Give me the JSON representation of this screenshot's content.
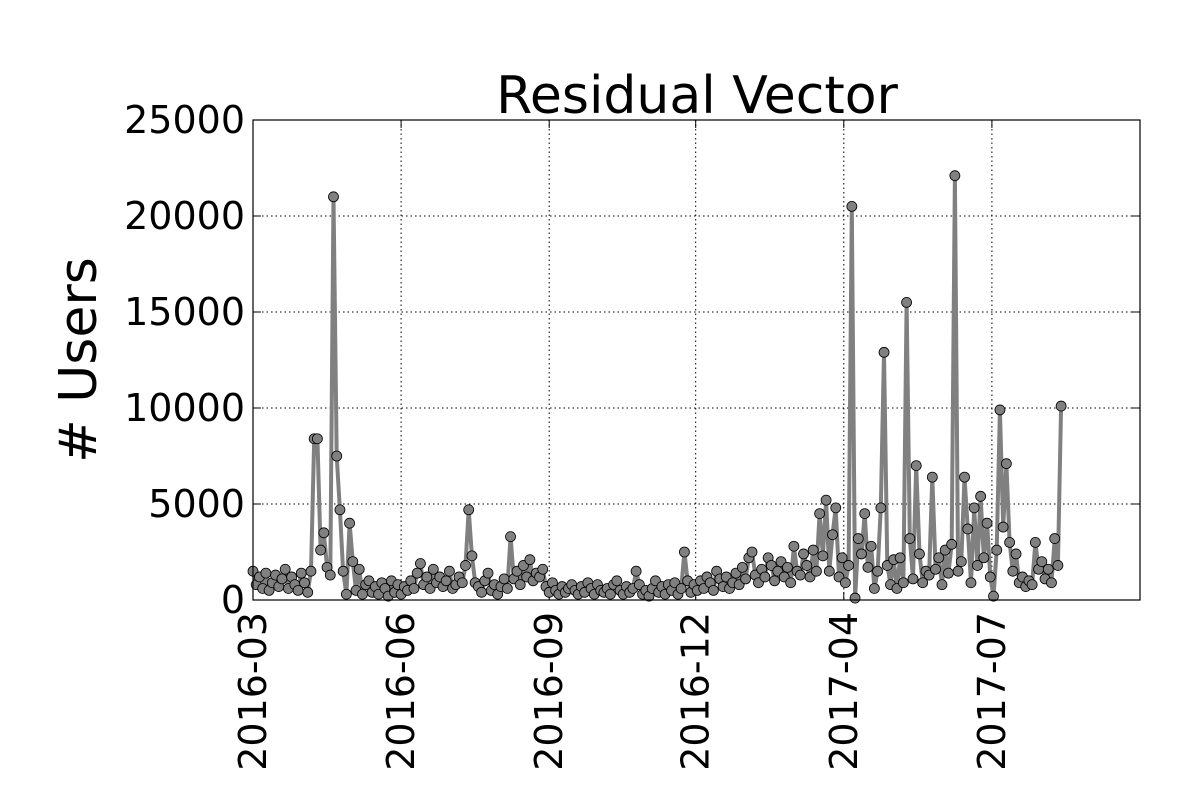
{
  "chart_data": {
    "type": "line",
    "title": "Residual Vector",
    "y_label": "# Users",
    "x": [
      0,
      2,
      4,
      6,
      8,
      10,
      12,
      14,
      16,
      18,
      20,
      22,
      24,
      26,
      28,
      30,
      32,
      34,
      36,
      38,
      40,
      42,
      44,
      46,
      48,
      50,
      52,
      54,
      56,
      58,
      60,
      62,
      64,
      66,
      68,
      70,
      72,
      74,
      76,
      78,
      80,
      82,
      84,
      86,
      88,
      90,
      92,
      94,
      96,
      98,
      100,
      102,
      104,
      106,
      108,
      110,
      112,
      114,
      116,
      118,
      120,
      122,
      124,
      126,
      128,
      130,
      132,
      134,
      136,
      138,
      140,
      142,
      144,
      146,
      148,
      150,
      152,
      154,
      156,
      158,
      160,
      162,
      164,
      166,
      168,
      170,
      172,
      174,
      176,
      178,
      180,
      182,
      184,
      186,
      188,
      190,
      192,
      194,
      196,
      198,
      200,
      202,
      204,
      206,
      208,
      210,
      212,
      214,
      216,
      218,
      220,
      222,
      224,
      226,
      228,
      230,
      232,
      234,
      236,
      238,
      240,
      242,
      244,
      246,
      248,
      250,
      252,
      254,
      256,
      258,
      260,
      262,
      264,
      266,
      268,
      270,
      272,
      274,
      276,
      278,
      280,
      282,
      284,
      286,
      288,
      290,
      292,
      294,
      296,
      298,
      300,
      302,
      304,
      306,
      308,
      310,
      312,
      314,
      316,
      318,
      320,
      322,
      324,
      326,
      328,
      330,
      332,
      334,
      336,
      338,
      340,
      342,
      344,
      346,
      348,
      350,
      352,
      354,
      356,
      358,
      360,
      362,
      364,
      366,
      368,
      370,
      372,
      374,
      376,
      378,
      380,
      382,
      384,
      386,
      388,
      390,
      392,
      394,
      396,
      398,
      400,
      402,
      404,
      406,
      408,
      410,
      412,
      414,
      416,
      418,
      420,
      422,
      424,
      426,
      428,
      430,
      432,
      434,
      436,
      438,
      440,
      442,
      444,
      446,
      448,
      450,
      452,
      454,
      456,
      458,
      460,
      462,
      464,
      466,
      468,
      470,
      472,
      474,
      476,
      478,
      480,
      482,
      484,
      486,
      488,
      490,
      492,
      494,
      496,
      498,
      500,
      502
    ],
    "values": [
      1500,
      800,
      1200,
      600,
      1400,
      500,
      900,
      1300,
      700,
      1100,
      1600,
      600,
      1200,
      800,
      500,
      1400,
      900,
      400,
      1500,
      8400,
      8400,
      2600,
      3500,
      1700,
      1300,
      21000,
      7500,
      4700,
      1500,
      300,
      4000,
      2000,
      500,
      1600,
      300,
      800,
      1000,
      400,
      700,
      300,
      900,
      600,
      200,
      1000,
      400,
      800,
      300,
      700,
      500,
      1000,
      600,
      1400,
      1900,
      800,
      1200,
      600,
      1600,
      900,
      1200,
      700,
      1000,
      1500,
      600,
      800,
      1200,
      900,
      1800,
      4700,
      2300,
      900,
      700,
      400,
      1000,
      1400,
      500,
      800,
      300,
      700,
      1100,
      600,
      3300,
      1100,
      1500,
      800,
      1800,
      1200,
      2100,
      1000,
      1400,
      1200,
      1600,
      700,
      400,
      900,
      500,
      300,
      700,
      400,
      600,
      800,
      500,
      300,
      700,
      400,
      900,
      600,
      300,
      800,
      500,
      400,
      600,
      300,
      800,
      1000,
      500,
      300,
      700,
      400,
      600,
      1500,
      800,
      300,
      500,
      200,
      600,
      1000,
      400,
      700,
      300,
      800,
      500,
      900,
      300,
      600,
      2500,
      1000,
      400,
      800,
      500,
      1000,
      600,
      1200,
      900,
      500,
      1500,
      1100,
      700,
      1200,
      600,
      900,
      1400,
      800,
      1700,
      1100,
      2200,
      2500,
      1300,
      900,
      1600,
      1200,
      2200,
      1800,
      1000,
      1500,
      2000,
      1200,
      1700,
      900,
      2800,
      1500,
      1300,
      2400,
      1800,
      1200,
      2600,
      1500,
      4500,
      2300,
      5200,
      1500,
      3400,
      4800,
      1200,
      2200,
      900,
      1800,
      20500,
      100,
      3200,
      2400,
      4500,
      1700,
      2800,
      600,
      1500,
      4800,
      12900,
      1800,
      800,
      2100,
      600,
      2200,
      900,
      15500,
      3200,
      1100,
      7000,
      2400,
      900,
      1500,
      1300,
      6400,
      1600,
      2200,
      800,
      2600,
      1400,
      2900,
      22100,
      1500,
      2000,
      6400,
      3700,
      900,
      4800,
      1800,
      5400,
      2200,
      4000,
      1200,
      200,
      2600,
      9900,
      3800,
      7100,
      3000,
      1500,
      2400,
      900,
      1200,
      700,
      1000,
      800,
      3000,
      1600,
      2000,
      1100,
      1600,
      900,
      3200,
      1800,
      10100
    ],
    "color": "#808080",
    "marker_edge_color": "#000000",
    "xlim": [
      0,
      551
    ],
    "xticks": [
      {
        "value": 0,
        "label": "2016-03"
      },
      {
        "value": 92,
        "label": "2016-06"
      },
      {
        "value": 184,
        "label": "2016-09"
      },
      {
        "value": 275,
        "label": "2016-12"
      },
      {
        "value": 367,
        "label": "2017-04"
      },
      {
        "value": 459,
        "label": "2017-07"
      }
    ],
    "ylim": [
      0,
      25000
    ],
    "yticks": [
      0,
      5000,
      10000,
      15000,
      20000,
      25000
    ],
    "grid": true
  }
}
